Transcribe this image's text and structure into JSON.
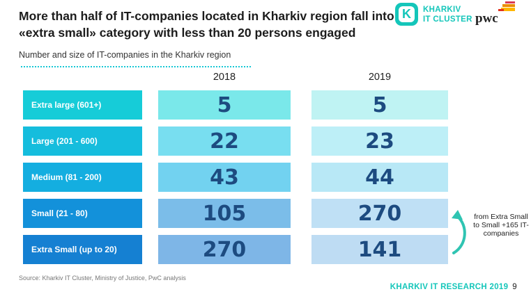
{
  "title": "More than half of IT-companies located in Kharkiv region fall into «extra small» category with less than 20 persons engaged",
  "subtitle": "Number and size of IT-companies in the Kharkiv region",
  "logo": {
    "line1": "KHARKIV",
    "line2": "IT CLUSTER",
    "partner": "pwc",
    "k_letter": "K"
  },
  "years": [
    "2018",
    "2019"
  ],
  "rows": [
    {
      "label": "Extra large (601+)",
      "v2018": "5",
      "v2019": "5",
      "label_color": "#16ccd8",
      "c2018": "#7ae8ea",
      "c2019": "#bff3f3"
    },
    {
      "label": "Large (201 - 600)",
      "v2018": "22",
      "v2019": "23",
      "label_color": "#15bddd",
      "c2018": "#78def0",
      "c2019": "#bdeff7"
    },
    {
      "label": "Medium (81 - 200)",
      "v2018": "43",
      "v2019": "44",
      "label_color": "#14aee0",
      "c2018": "#72d2f0",
      "c2019": "#b8e8f6"
    },
    {
      "label": "Small (21 - 80)",
      "v2018": "105",
      "v2019": "270",
      "label_color": "#1391da",
      "c2018": "#7bbde9",
      "c2019": "#bfe0f5"
    },
    {
      "label": "Extra Small (up to 20)",
      "v2018": "270",
      "v2019": "141",
      "label_color": "#1580d2",
      "c2018": "#7eb6e7",
      "c2019": "#bedcf3"
    }
  ],
  "note": "from Extra Small to Small +165 IT-companies",
  "source": "Source: Kharkiv IT Cluster, Ministry of Justice, PwC analysis",
  "footer": {
    "text": "KHARKIV IT RESEARCH 2019",
    "page": "9"
  },
  "colors": {
    "accent": "#14c6ba",
    "number": "#1d4b80",
    "arrow": "#2fc4b2"
  }
}
